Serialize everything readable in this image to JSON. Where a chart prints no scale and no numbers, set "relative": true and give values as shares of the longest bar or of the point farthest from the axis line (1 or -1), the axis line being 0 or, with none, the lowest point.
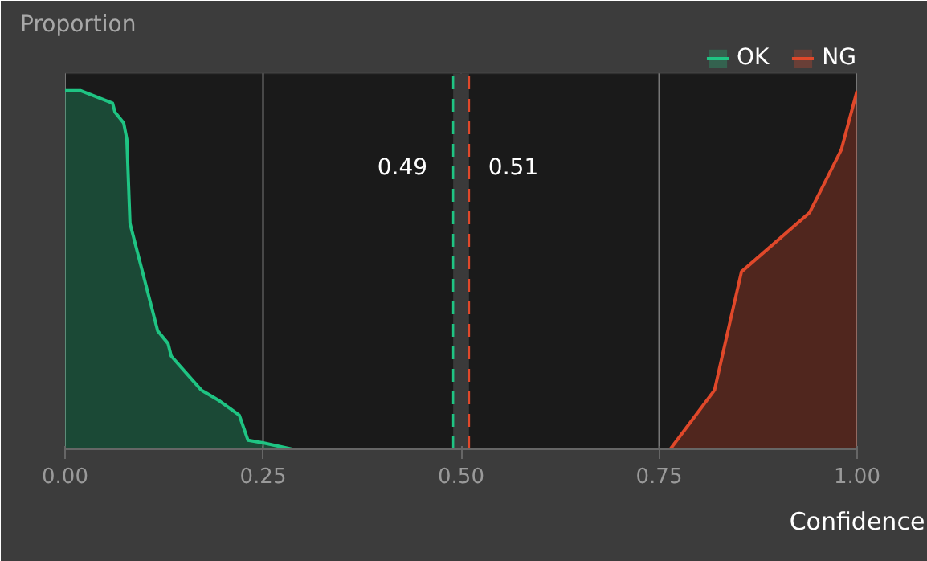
{
  "chart_data": {
    "type": "area",
    "title": "Proportion",
    "xlabel": "Confidence",
    "relative": true,
    "xlim": [
      0,
      1
    ],
    "xticks": [
      {
        "value": 0,
        "label": "0.00"
      },
      0.25,
      {
        "value": 0.5,
        "label": "0.50"
      },
      0.75,
      {
        "value": 1,
        "label": "1.00"
      }
    ],
    "grid": "x",
    "legend": "top right",
    "series": [
      {
        "name": "OK",
        "color": "#1fc483",
        "x": [
          0,
          0.02,
          0.06,
          0.063,
          0.074,
          0.078,
          0.082,
          0.117,
          0.13,
          0.134,
          0.172,
          0.195,
          0.22,
          0.231,
          0.25,
          0.287
        ],
        "values": [
          1.0,
          1.0,
          0.965,
          0.94,
          0.91,
          0.865,
          0.63,
          0.33,
          0.295,
          0.26,
          0.165,
          0.135,
          0.095,
          0.025,
          0.018,
          0
        ]
      },
      {
        "name": "NG",
        "color": "#e0482a",
        "x": [
          0.764,
          0.82,
          0.84,
          0.854,
          0.94,
          0.98,
          1.0
        ],
        "values": [
          0,
          0.165,
          0.36,
          0.495,
          0.66,
          0.835,
          1.0
        ]
      }
    ],
    "bands": [
      {
        "axis": "x",
        "from": 0.49,
        "to": 0.51,
        "color": "#3a3a3a"
      }
    ],
    "ref_lines": [
      {
        "axis": "x",
        "value": 0.49,
        "label": "0.49",
        "color": "#1fc483",
        "line_style": "dashed"
      },
      {
        "axis": "x",
        "value": 0.51,
        "label": "0.51",
        "color": "#e0482a",
        "line_style": "dashed"
      }
    ]
  }
}
